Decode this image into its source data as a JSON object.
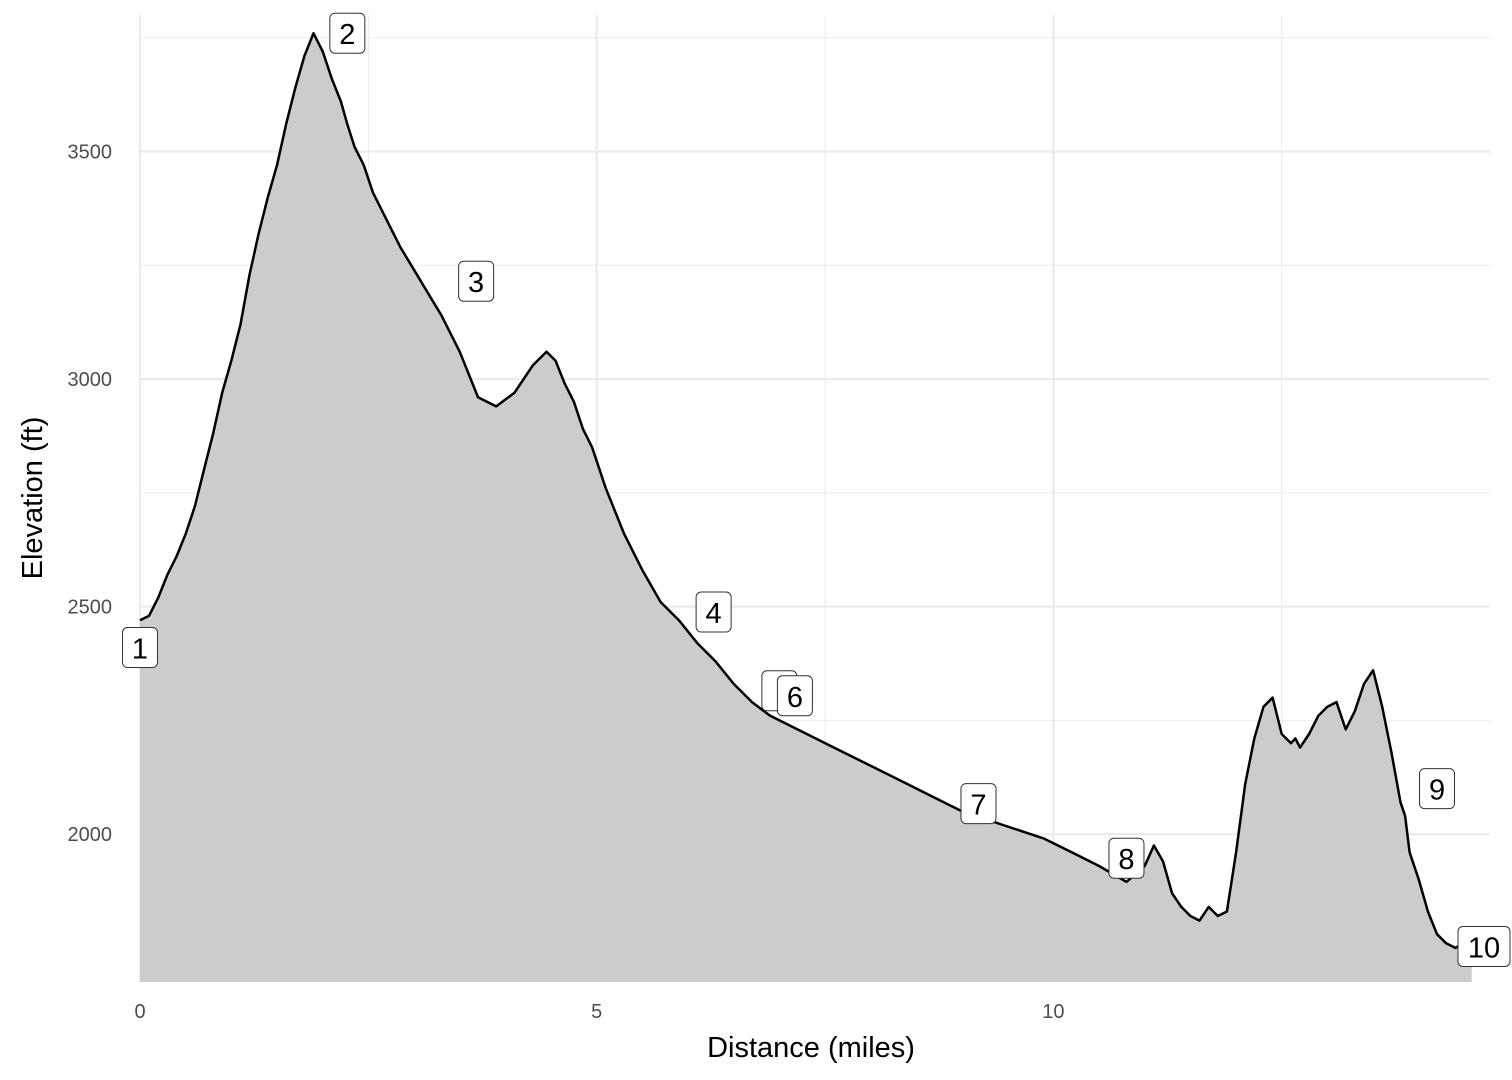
{
  "chart_data": {
    "type": "area",
    "xlabel": "Distance (miles)",
    "ylabel": "Elevation (ft)",
    "xlim": [
      0,
      14.78
    ],
    "ylim": [
      1675,
      3800
    ],
    "x_ticks": [
      0,
      5,
      10
    ],
    "y_ticks": [
      2000,
      2500,
      3000,
      3500
    ],
    "grid": true,
    "colors": {
      "fill": "#cccccc",
      "line": "#000000",
      "grid": "#ebebeb"
    },
    "profile": {
      "x": [
        0,
        0.1,
        0.2,
        0.3,
        0.4,
        0.5,
        0.6,
        0.7,
        0.8,
        0.9,
        1.0,
        1.1,
        1.2,
        1.3,
        1.4,
        1.5,
        1.6,
        1.7,
        1.8,
        1.9,
        2.0,
        2.1,
        2.2,
        2.27,
        2.35,
        2.45,
        2.55,
        2.7,
        2.85,
        3.0,
        3.15,
        3.3,
        3.5,
        3.7,
        3.9,
        4.1,
        4.3,
        4.45,
        4.55,
        4.65,
        4.75,
        4.85,
        4.95,
        5.1,
        5.3,
        5.5,
        5.7,
        5.9,
        6.1,
        6.3,
        6.5,
        6.7,
        6.9,
        7.1,
        7.3,
        7.5,
        7.8,
        8.1,
        8.4,
        8.7,
        9.0,
        9.3,
        9.6,
        9.9,
        10.2,
        10.5,
        10.8,
        11.0,
        11.1,
        11.2,
        11.3,
        11.4,
        11.5,
        11.6,
        11.7,
        11.8,
        11.9,
        12.0,
        12.1,
        12.2,
        12.3,
        12.4,
        12.5,
        12.6,
        12.65,
        12.7,
        12.8,
        12.9,
        13.0,
        13.1,
        13.2,
        13.3,
        13.4,
        13.5,
        13.6,
        13.7,
        13.8,
        13.85,
        13.9,
        14.0,
        14.1,
        14.2,
        14.3,
        14.4,
        14.5,
        14.58
      ],
      "y": [
        2470,
        2480,
        2520,
        2570,
        2610,
        2660,
        2720,
        2800,
        2880,
        2970,
        3040,
        3120,
        3230,
        3320,
        3400,
        3470,
        3560,
        3640,
        3710,
        3760,
        3720,
        3660,
        3610,
        3560,
        3510,
        3470,
        3410,
        3350,
        3290,
        3240,
        3190,
        3140,
        3060,
        2960,
        2940,
        2970,
        3030,
        3060,
        3040,
        2990,
        2950,
        2890,
        2850,
        2760,
        2660,
        2580,
        2510,
        2470,
        2420,
        2380,
        2330,
        2290,
        2260,
        2240,
        2220,
        2200,
        2170,
        2140,
        2110,
        2080,
        2050,
        2030,
        2010,
        1990,
        1960,
        1930,
        1895,
        1930,
        1975,
        1940,
        1870,
        1840,
        1820,
        1810,
        1840,
        1820,
        1830,
        1960,
        2110,
        2210,
        2280,
        2300,
        2220,
        2200,
        2210,
        2190,
        2220,
        2260,
        2280,
        2290,
        2230,
        2270,
        2330,
        2360,
        2280,
        2180,
        2070,
        2040,
        1960,
        1900,
        1830,
        1780,
        1760,
        1750,
        1760,
        1760
      ]
    },
    "markers": [
      {
        "label": "1",
        "x": 0.0,
        "y": 2410
      },
      {
        "label": "2",
        "x": 2.27,
        "y": 3760
      },
      {
        "label": "3",
        "x": 3.68,
        "y": 3215
      },
      {
        "label": "4",
        "x": 6.28,
        "y": 2488
      },
      {
        "label": "",
        "x": 7.0,
        "y": 2315
      },
      {
        "label": "6",
        "x": 7.17,
        "y": 2304
      },
      {
        "label": "7",
        "x": 9.18,
        "y": 2067
      },
      {
        "label": "8",
        "x": 10.8,
        "y": 1947
      },
      {
        "label": "9",
        "x": 14.2,
        "y": 2100
      },
      {
        "label": "10",
        "x": 14.76,
        "y": 1753
      }
    ]
  }
}
